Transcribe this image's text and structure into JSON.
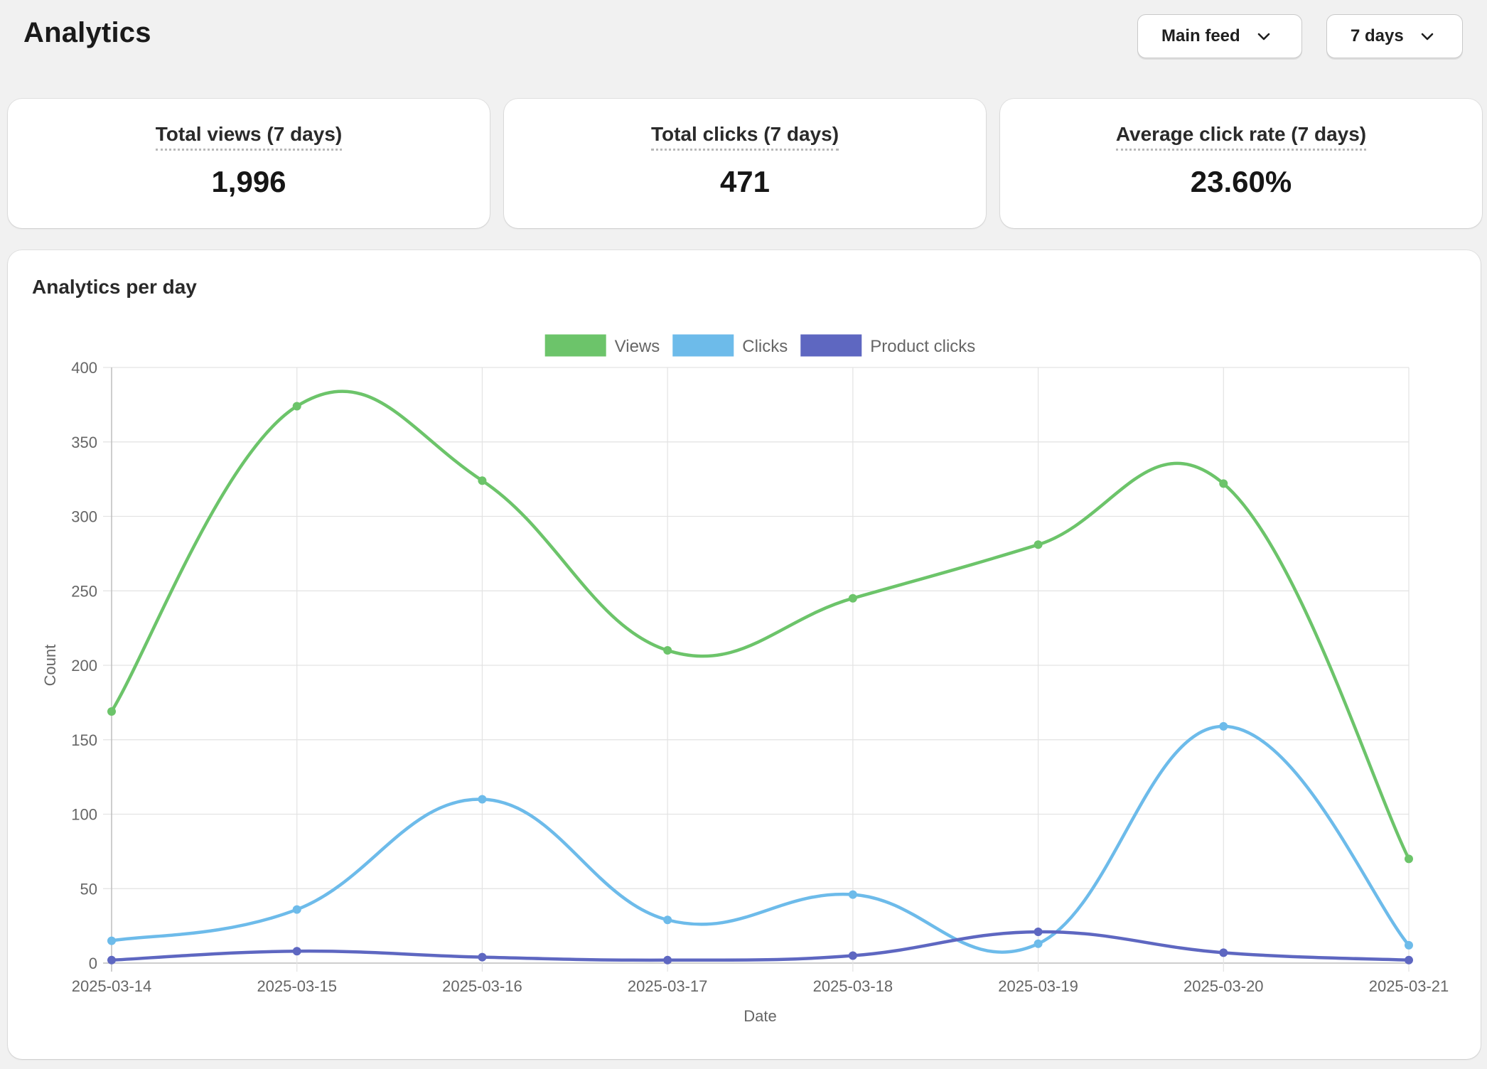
{
  "header": {
    "title": "Analytics",
    "feed_select": {
      "value": "Main feed",
      "icon": "chevron-down-icon"
    },
    "range_select": {
      "value": "7 days",
      "icon": "chevron-down-icon"
    }
  },
  "stats": [
    {
      "label": "Total views (7 days)",
      "value": "1,996"
    },
    {
      "label": "Total clicks (7 days)",
      "value": "471"
    },
    {
      "label": "Average click rate (7 days)",
      "value": "23.60%"
    }
  ],
  "chart_card": {
    "title": "Analytics per day"
  },
  "chart_data": {
    "type": "line",
    "xlabel": "Date",
    "ylabel": "Count",
    "ylim": [
      0,
      400
    ],
    "yticks": [
      0,
      50,
      100,
      150,
      200,
      250,
      300,
      350,
      400
    ],
    "grid": true,
    "legend_position": "top-center",
    "categories": [
      "2025-03-14",
      "2025-03-15",
      "2025-03-16",
      "2025-03-17",
      "2025-03-18",
      "2025-03-19",
      "2025-03-20",
      "2025-03-21"
    ],
    "series": [
      {
        "name": "Views",
        "color": "#6cc46a",
        "values": [
          169,
          374,
          324,
          210,
          245,
          281,
          322,
          70
        ]
      },
      {
        "name": "Clicks",
        "color": "#6dbbea",
        "values": [
          15,
          36,
          110,
          29,
          46,
          13,
          159,
          12
        ]
      },
      {
        "name": "Product clicks",
        "color": "#5e67c1",
        "values": [
          2,
          8,
          4,
          2,
          5,
          21,
          7,
          2
        ]
      }
    ]
  }
}
